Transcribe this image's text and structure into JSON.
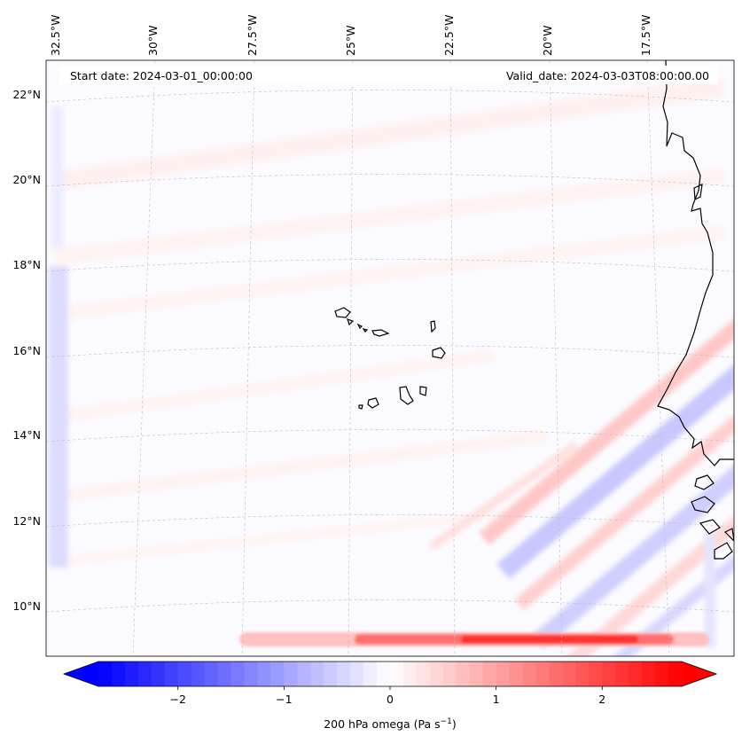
{
  "map": {
    "start_label": "Start date: 2024-03-01_00:00:00",
    "valid_label": "Valid_date: 2024-03-03T08:00:00.00",
    "variable": "200 hPa omega",
    "lon_labels": [
      "32.5°W",
      "30°W",
      "27.5°W",
      "25°W",
      "22.5°W",
      "20°W",
      "17.5°W"
    ],
    "lat_labels": [
      "22°N",
      "20°N",
      "18°N",
      "16°N",
      "14°N",
      "12°N",
      "10°N"
    ],
    "colormap": "bwr",
    "colors": {
      "negative": "#0000ff",
      "zero": "#ffffff",
      "positive": "#ff0000",
      "coastline": "#000000"
    }
  },
  "colorbar": {
    "ticks": [
      -2,
      -1,
      0,
      1,
      2
    ],
    "tick_labels": [
      "−2",
      "−1",
      "0",
      "1",
      "2"
    ],
    "min": -2.75,
    "max": 2.75,
    "extend": "both",
    "label": "200 hPa omega (Pa s",
    "label_exp": "−1",
    "label_tail": ")"
  }
}
